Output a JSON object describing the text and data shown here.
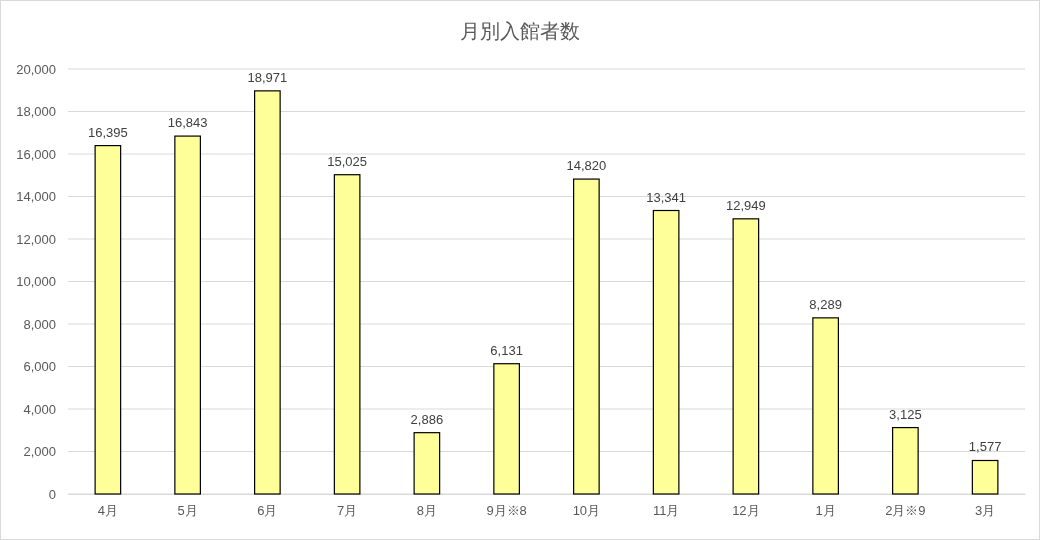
{
  "chart_data": {
    "type": "bar",
    "title": "月別入館者数",
    "categories": [
      "4月",
      "5月",
      "6月",
      "7月",
      "8月",
      "9月※8",
      "10月",
      "11月",
      "12月",
      "1月",
      "2月※9",
      "3月"
    ],
    "values": [
      16395,
      16843,
      18971,
      15025,
      2886,
      6131,
      14820,
      13341,
      12949,
      8289,
      3125,
      1577
    ],
    "color": "#ffff99",
    "ylim": [
      0,
      20000
    ],
    "yticks": [
      {
        "value": 0,
        "label": "0"
      },
      {
        "value": 2000,
        "label": "2,000"
      },
      {
        "value": 4000,
        "label": "4,000"
      },
      {
        "value": 6000,
        "label": "6,000"
      },
      {
        "value": 8000,
        "label": "8,000"
      },
      {
        "value": 10000,
        "label": "10,000"
      },
      {
        "value": 12000,
        "label": "12,000"
      },
      {
        "value": 14000,
        "label": "14,000"
      },
      {
        "value": 16000,
        "label": "16,000"
      },
      {
        "value": 18000,
        "label": "18,000"
      },
      {
        "value": 20000,
        "label": "20,000"
      }
    ],
    "value_labels": [
      "16,395",
      "16,843",
      "18,971",
      "15,025",
      "2,886",
      "6,131",
      "14,820",
      "13,341",
      "12,949",
      "8,289",
      "3,125",
      "1,577"
    ],
    "grid": "y"
  }
}
